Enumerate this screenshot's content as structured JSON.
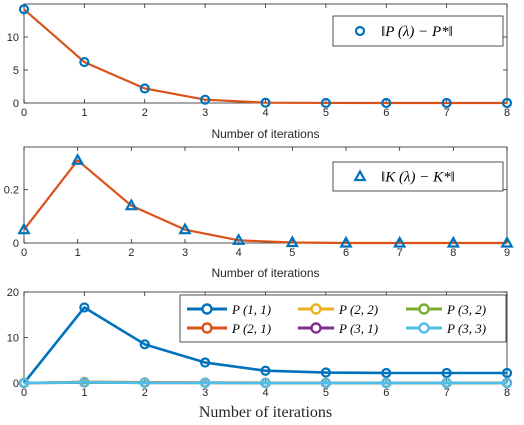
{
  "chart_data": [
    {
      "type": "line",
      "x": [
        0,
        1,
        2,
        3,
        4,
        5,
        6,
        7,
        8
      ],
      "xlim": [
        0,
        8
      ],
      "ylim": [
        0,
        15
      ],
      "xticks": [
        "0",
        "1",
        "2",
        "3",
        "4",
        "5",
        "6",
        "7",
        "8"
      ],
      "yticks": [
        "0",
        "5",
        "10"
      ],
      "xlabel": "Number of iterations",
      "grid": false,
      "legend_position": "top-right",
      "series": [
        {
          "name": "‖P (λ) − P*‖",
          "values": [
            14.2,
            6.2,
            2.2,
            0.5,
            0.05,
            0.01,
            0.0,
            0.0,
            0.0
          ],
          "line_color": "#D95319",
          "marker": "circle",
          "marker_color": "#0072BD"
        }
      ]
    },
    {
      "type": "line",
      "x": [
        0,
        1,
        2,
        3,
        4,
        5,
        6,
        7,
        8,
        9
      ],
      "xlim": [
        0,
        9
      ],
      "ylim": [
        0,
        0.36
      ],
      "xticks": [
        "0",
        "1",
        "2",
        "3",
        "4",
        "5",
        "6",
        "7",
        "8",
        "9"
      ],
      "yticks": [
        "0",
        "0.2"
      ],
      "xlabel": "Number of iterations",
      "grid": false,
      "legend_position": "top-right",
      "series": [
        {
          "name": "‖K (λ) − K*‖",
          "values": [
            0.05,
            0.31,
            0.14,
            0.05,
            0.01,
            0.002,
            0.0,
            0.0,
            0.0,
            0.0
          ],
          "line_color": "#D95319",
          "marker": "triangle",
          "marker_color": "#0072BD"
        }
      ]
    },
    {
      "type": "line",
      "x": [
        0,
        1,
        2,
        3,
        4,
        5,
        6,
        7,
        8
      ],
      "xlim": [
        0,
        8
      ],
      "ylim": [
        0,
        20
      ],
      "xticks": [
        "0",
        "1",
        "2",
        "3",
        "4",
        "5",
        "6",
        "7",
        "8"
      ],
      "yticks": [
        "0",
        "10",
        "20"
      ],
      "xlabel": "Number of iterations",
      "grid": false,
      "legend_position": "top-right",
      "series": [
        {
          "name": "P (1, 1)",
          "values": [
            0,
            16.6,
            8.5,
            4.5,
            2.7,
            2.3,
            2.2,
            2.2,
            2.2
          ],
          "color": "#0072BD"
        },
        {
          "name": "P (2, 1)",
          "values": [
            0,
            0.25,
            0.15,
            0.1,
            0.05,
            0.05,
            0.05,
            0.05,
            0.05
          ],
          "color": "#D95319"
        },
        {
          "name": "P (2, 2)",
          "values": [
            0,
            0.2,
            0.1,
            0.05,
            0.05,
            0.05,
            0.05,
            0.05,
            0.05
          ],
          "color": "#EDB120"
        },
        {
          "name": "P (3, 1)",
          "values": [
            0,
            0.1,
            0.05,
            0.05,
            0.0,
            0.0,
            0.0,
            0.0,
            0.0
          ],
          "color": "#7E2F8E"
        },
        {
          "name": "P (3, 2)",
          "values": [
            0,
            0.1,
            0.05,
            0.05,
            0.0,
            0.0,
            0.0,
            0.0,
            0.0
          ],
          "color": "#77AC30"
        },
        {
          "name": "P (3, 3)",
          "values": [
            0,
            0.15,
            0.05,
            0.05,
            0.0,
            0.0,
            0.0,
            0.0,
            0.0
          ],
          "color": "#4DBEEE"
        }
      ]
    }
  ]
}
